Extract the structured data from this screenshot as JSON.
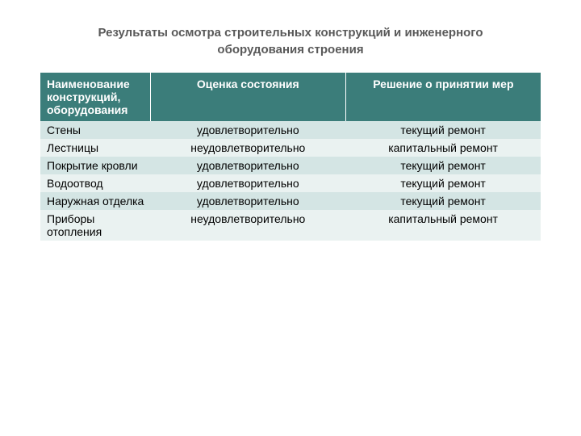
{
  "title": "Результаты осмотра строительных конструкций и инженерного оборудования строения",
  "table": {
    "type": "table",
    "header_bg": "#3b7d7a",
    "header_text_color": "#ffffff",
    "row_colors": [
      "#d4e5e4",
      "#eaf2f1"
    ],
    "title_color": "#595959",
    "title_fontsize": 15,
    "cell_fontsize": 14,
    "columns": [
      {
        "label": "Наименование конструкций, оборудования",
        "width": "22%",
        "align": "left"
      },
      {
        "label": "Оценка состояния",
        "width": "39%",
        "align": "center"
      },
      {
        "label": "Решение о принятии мер",
        "width": "39%",
        "align": "center"
      }
    ],
    "rows": [
      {
        "name": "Стены",
        "assessment": "удовлетворительно",
        "decision": "текущий ремонт"
      },
      {
        "name": "Лестницы",
        "assessment": "неудовлетворительно",
        "decision": "капитальный ремонт"
      },
      {
        "name": "Покрытие кровли",
        "assessment": "удовлетворительно",
        "decision": "текущий ремонт"
      },
      {
        "name": "Водоотвод",
        "assessment": "удовлетворительно",
        "decision": "текущий ремонт"
      },
      {
        "name": "Наружная отделка",
        "assessment": "удовлетворительно",
        "decision": "текущий ремонт"
      },
      {
        "name": "Приборы отопления",
        "assessment": "неудовлетворительно",
        "decision": "капитальный ремонт"
      }
    ]
  }
}
